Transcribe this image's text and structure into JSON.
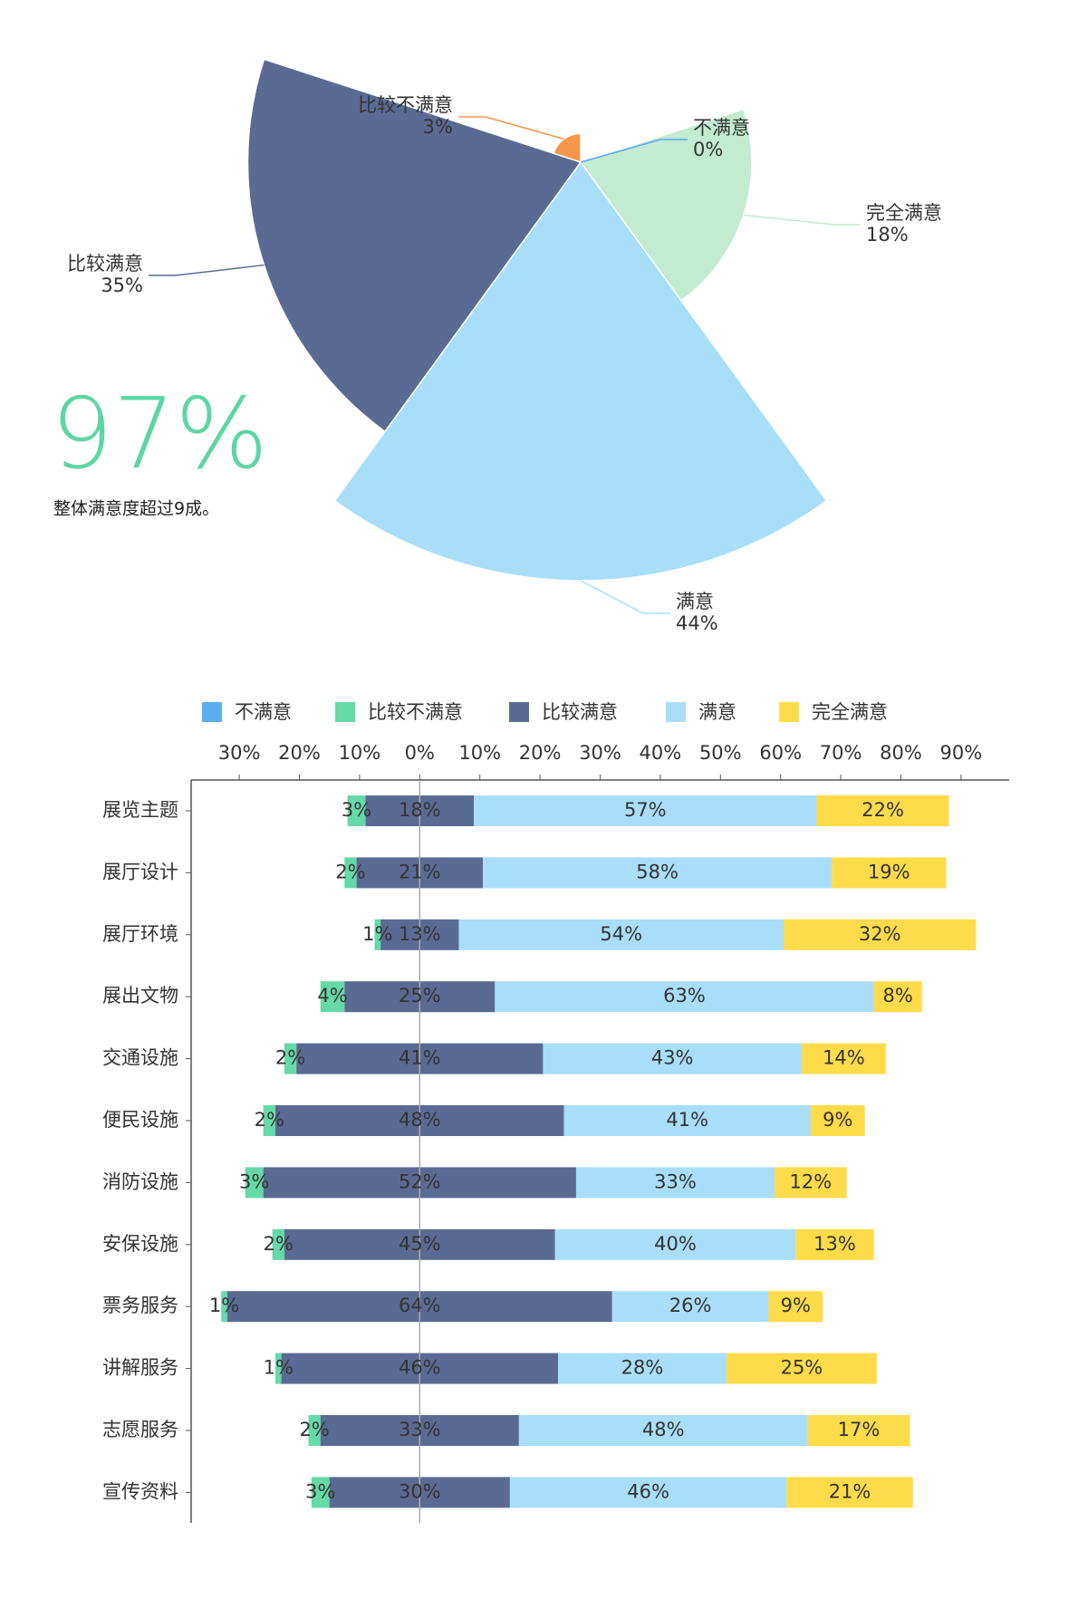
{
  "chart_data": [
    {
      "type": "rose",
      "categories": [
        "不满意",
        "完全满意",
        "满意",
        "比较满意",
        "比较不满意"
      ],
      "values": [
        0,
        18,
        44,
        35,
        3
      ],
      "value_labels": [
        "0%",
        "18%",
        "44%",
        "35%",
        "3%"
      ],
      "colors": [
        "#5aa9ee",
        "#c2ebd1",
        "#a8def8",
        "#5a6b93",
        "#f5964b"
      ],
      "annotations": [
        "97%",
        "整体满意度超过9成。"
      ]
    },
    {
      "type": "diverging-bar",
      "categories": [
        "展览主题",
        "展厅设计",
        "展厅环境",
        "展出文物",
        "交通设施",
        "便民设施",
        "消防设施",
        "安保设施",
        "票务服务",
        "讲解服务",
        "志愿服务",
        "宣传资料"
      ],
      "series": [
        {
          "name": "不满意",
          "color": "#5aaef0",
          "values": [
            0,
            0,
            0,
            0,
            0,
            0,
            0,
            0,
            0,
            0,
            0,
            0
          ]
        },
        {
          "name": "比较不满意",
          "color": "#66d9a8",
          "values": [
            3,
            2,
            1,
            4,
            2,
            2,
            3,
            2,
            1,
            1,
            2,
            3
          ],
          "value_labels": [
            "3%",
            "2%",
            "1%",
            "4%",
            "2%",
            "2%",
            "3%",
            "2%",
            "1%",
            "1%",
            "2%",
            "3%"
          ]
        },
        {
          "name": "比较满意",
          "color": "#5a6b93",
          "values": [
            18,
            21,
            13,
            25,
            41,
            48,
            52,
            45,
            64,
            46,
            33,
            30
          ],
          "value_labels": [
            "18%",
            "21%",
            "13%",
            "25%",
            "41%",
            "48%",
            "52%",
            "45%",
            "64%",
            "46%",
            "33%",
            "30%"
          ]
        },
        {
          "name": "满意",
          "color": "#a8def8",
          "values": [
            57,
            58,
            54,
            63,
            43,
            41,
            33,
            40,
            26,
            28,
            48,
            46
          ],
          "value_labels": [
            "57%",
            "58%",
            "54%",
            "63%",
            "43%",
            "41%",
            "33%",
            "40%",
            "26%",
            "28%",
            "48%",
            "46%"
          ]
        },
        {
          "name": "完全满意",
          "color": "#fedb4a",
          "values": [
            22,
            19,
            32,
            8,
            14,
            9,
            12,
            13,
            9,
            25,
            17,
            21
          ],
          "value_labels": [
            "22%",
            "19%",
            "32%",
            "8%",
            "14%",
            "9%",
            "12%",
            "13%",
            "9%",
            "25%",
            "17%",
            "21%"
          ]
        }
      ],
      "xlim": [
        -38,
        98
      ],
      "xticks": [
        {
          "value": -30,
          "label": "30%"
        },
        {
          "value": -20,
          "label": "20%"
        },
        {
          "value": -10,
          "label": "10%"
        },
        {
          "value": 0,
          "label": "0%"
        },
        {
          "value": 10,
          "label": "10%"
        },
        {
          "value": 20,
          "label": "20%"
        },
        {
          "value": 30,
          "label": "30%"
        },
        {
          "value": 40,
          "label": "40%"
        },
        {
          "value": 50,
          "label": "50%"
        },
        {
          "value": 60,
          "label": "60%"
        },
        {
          "value": 70,
          "label": "70%"
        },
        {
          "value": 80,
          "label": "80%"
        },
        {
          "value": 90,
          "label": "90%"
        }
      ]
    }
  ]
}
